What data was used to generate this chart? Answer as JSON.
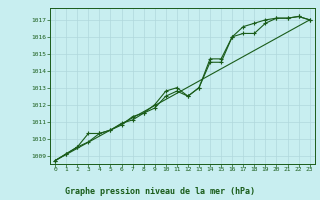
{
  "title": "Graphe pression niveau de la mer (hPa)",
  "bg_color": "#c8eef0",
  "grid_color": "#b0d8dc",
  "line_color": "#1a5c1a",
  "marker_color": "#1a5c1a",
  "xlim": [
    -0.5,
    23.5
  ],
  "ylim": [
    1008.5,
    1017.7
  ],
  "xticks": [
    0,
    1,
    2,
    3,
    4,
    5,
    6,
    7,
    8,
    9,
    10,
    11,
    12,
    13,
    14,
    15,
    16,
    17,
    18,
    19,
    20,
    21,
    22,
    23
  ],
  "yticks": [
    1009,
    1010,
    1011,
    1012,
    1013,
    1014,
    1015,
    1016,
    1017
  ],
  "line1_x": [
    0,
    1,
    2,
    3,
    4,
    5,
    6,
    7,
    8,
    9,
    10,
    11,
    12,
    13,
    14,
    15,
    16,
    17,
    18,
    19,
    20,
    21,
    22,
    23
  ],
  "line1_y": [
    1008.7,
    1009.1,
    1009.5,
    1009.8,
    1010.3,
    1010.5,
    1010.8,
    1011.3,
    1011.5,
    1011.8,
    1012.5,
    1012.8,
    1012.5,
    1013.0,
    1014.7,
    1014.7,
    1016.0,
    1016.6,
    1016.8,
    1017.0,
    1017.1,
    1017.1,
    1017.2,
    1017.0
  ],
  "line2_x": [
    0,
    1,
    2,
    3,
    4,
    5,
    6,
    7,
    8,
    9,
    10,
    11,
    12,
    13,
    14,
    15,
    16,
    17,
    18,
    19,
    20,
    21,
    22,
    23
  ],
  "line2_y": [
    1008.7,
    1009.1,
    1009.5,
    1010.3,
    1010.3,
    1010.5,
    1010.9,
    1011.1,
    1011.5,
    1012.0,
    1012.8,
    1013.0,
    1012.5,
    1013.0,
    1014.5,
    1014.5,
    1016.0,
    1016.2,
    1016.2,
    1016.8,
    1017.1,
    1017.1,
    1017.2,
    1017.0
  ],
  "line3_x": [
    0,
    23
  ],
  "line3_y": [
    1008.7,
    1017.0
  ],
  "title_bg": "#ffffff",
  "title_color": "#1a5c1a"
}
